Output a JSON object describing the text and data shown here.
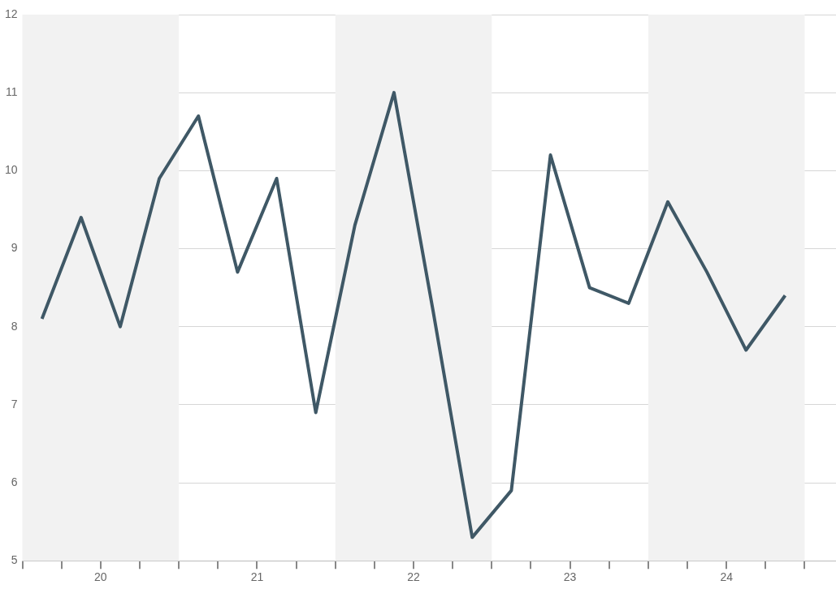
{
  "chart_data": {
    "type": "line",
    "x": [
      19.625,
      19.875,
      20.125,
      20.375,
      20.625,
      20.875,
      21.125,
      21.375,
      21.625,
      21.875,
      22.125,
      22.375,
      22.625,
      22.875,
      23.125,
      23.375,
      23.625,
      23.875,
      24.125,
      24.375
    ],
    "series": [
      {
        "color": "#3f5866",
        "values": [
          8.1,
          9.4,
          8.0,
          9.9,
          10.7,
          8.7,
          9.9,
          6.9,
          9.3,
          11.0,
          8.2,
          5.3,
          5.9,
          10.2,
          8.5,
          8.3,
          9.6,
          8.7,
          7.7,
          8.4
        ]
      }
    ],
    "xlim": [
      19.5,
      24.7
    ],
    "xticks": [
      {
        "value": 19.5,
        "label": null
      },
      {
        "value": 19.75,
        "label": null
      },
      20,
      {
        "value": 20.25,
        "label": null
      },
      {
        "value": 20.5,
        "label": null
      },
      {
        "value": 20.75,
        "label": null
      },
      21,
      {
        "value": 21.25,
        "label": null
      },
      {
        "value": 21.5,
        "label": null
      },
      {
        "value": 21.75,
        "label": null
      },
      22,
      {
        "value": 22.25,
        "label": null
      },
      {
        "value": 22.5,
        "label": null
      },
      {
        "value": 22.75,
        "label": null
      },
      23,
      {
        "value": 23.25,
        "label": null
      },
      {
        "value": 23.5,
        "label": null
      },
      {
        "value": 23.75,
        "label": null
      },
      24,
      {
        "value": 24.25,
        "label": null
      },
      {
        "value": 24.5,
        "label": null
      }
    ],
    "ylim": [
      5,
      12
    ],
    "yticks": [
      5,
      6,
      7,
      8,
      9,
      10,
      11,
      12
    ],
    "bands": [
      {
        "axis": "x",
        "from": 19.5,
        "to": 20.5,
        "color": "#f2f2f2"
      },
      {
        "axis": "x",
        "from": 21.5,
        "to": 22.5,
        "color": "#f2f2f2"
      },
      {
        "axis": "x",
        "from": 23.5,
        "to": 24.5,
        "color": "#f2f2f2"
      }
    ],
    "grid": "y",
    "legend": false,
    "marker": "none",
    "line_style": "solid"
  }
}
